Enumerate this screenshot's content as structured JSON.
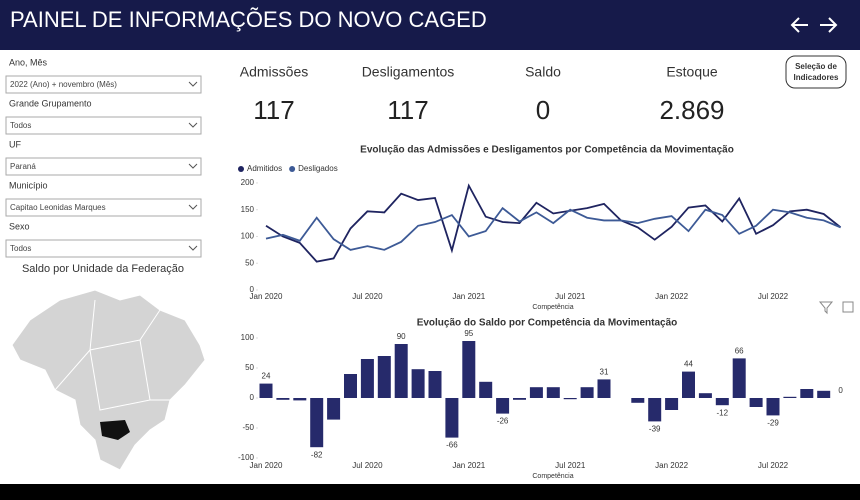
{
  "header": {
    "title": "PAINEL DE INFORMAÇÕES DO NOVO CAGED"
  },
  "filters": [
    {
      "label": "Ano, Mês",
      "value": "2022 (Ano) + novembro (Mês)"
    },
    {
      "label": "Grande Grupamento",
      "value": "Todos"
    },
    {
      "label": "UF",
      "value": "Paraná"
    },
    {
      "label": "Município",
      "value": "Capitao Leonidas Marques"
    },
    {
      "label": "Sexo",
      "value": "Todos"
    }
  ],
  "map": {
    "title": "Saldo por Unidade da Federação"
  },
  "kpis": [
    {
      "label": "Admissões",
      "value": "117"
    },
    {
      "label": "Desligamentos",
      "value": "117"
    },
    {
      "label": "Saldo",
      "value": "0"
    },
    {
      "label": "Estoque",
      "value": "2.869"
    }
  ],
  "button": {
    "label": "Seleção de Indicadores"
  },
  "chart_data": [
    {
      "type": "line",
      "title": "Evolução das Admissões e Desligamentos por Competência da Movimentação",
      "x_label": "Competência",
      "legend": "top-left",
      "categories": [
        "Jan 2020",
        null,
        null,
        null,
        null,
        null,
        "Jul 2020",
        null,
        null,
        null,
        null,
        null,
        "Jan 2021",
        null,
        null,
        null,
        null,
        null,
        "Jul 2021",
        null,
        null,
        null,
        null,
        null,
        "Jan 2022",
        null,
        null,
        null,
        null,
        null,
        "Jul 2022",
        null,
        null,
        null,
        null
      ],
      "series": [
        {
          "name": "Admitidos",
          "color": "#1f2460",
          "values": [
            120,
            100,
            88,
            53,
            59,
            115,
            147,
            145,
            180,
            168,
            172,
            74,
            195,
            137,
            127,
            125,
            163,
            143,
            148,
            153,
            161,
            130,
            117,
            94,
            118,
            154,
            158,
            128,
            171,
            105,
            121,
            147,
            150,
            142,
            117
          ]
        },
        {
          "name": "Desligados",
          "color": "#3d5a96",
          "values": [
            96,
            103,
            92,
            135,
            95,
            75,
            82,
            75,
            90,
            120,
            127,
            140,
            100,
            110,
            153,
            128,
            145,
            125,
            150,
            135,
            130,
            130,
            125,
            133,
            138,
            110,
            150,
            140,
            105,
            120,
            150,
            145,
            135,
            130,
            117
          ]
        }
      ],
      "ylim": [
        0,
        210
      ],
      "yticks": [
        0,
        50,
        100,
        150,
        200
      ],
      "grid": false
    },
    {
      "type": "bar",
      "title": "Evolução do Saldo por Competência da Movimentação",
      "x_label": "Competência",
      "color": "#262a6b",
      "categories": [
        "Jan 2020",
        null,
        null,
        null,
        null,
        null,
        "Jul 2020",
        null,
        null,
        null,
        null,
        null,
        "Jan 2021",
        null,
        null,
        null,
        null,
        null,
        "Jul 2021",
        null,
        null,
        null,
        null,
        null,
        "Jan 2022",
        null,
        null,
        null,
        null,
        null,
        "Jul 2022",
        null,
        null,
        null,
        null
      ],
      "values": [
        24,
        -3,
        -4,
        -82,
        -36,
        40,
        65,
        70,
        90,
        48,
        45,
        -66,
        95,
        27,
        -26,
        -3,
        18,
        18,
        -2,
        18,
        31,
        0,
        -8,
        -39,
        -20,
        44,
        8,
        -12,
        66,
        -15,
        -29,
        2,
        15,
        12,
        0
      ],
      "value_labels": [
        "24",
        null,
        null,
        "-82",
        null,
        null,
        null,
        null,
        "90",
        null,
        null,
        "-66",
        "95",
        null,
        "-26",
        null,
        null,
        null,
        null,
        null,
        "31",
        null,
        null,
        "-39",
        null,
        "44",
        null,
        "-12",
        "66",
        null,
        "-29",
        null,
        null,
        null,
        "0"
      ],
      "ylim": [
        -100,
        100
      ],
      "yticks": [
        -100,
        -50,
        0,
        50,
        100
      ],
      "grid": false
    }
  ]
}
